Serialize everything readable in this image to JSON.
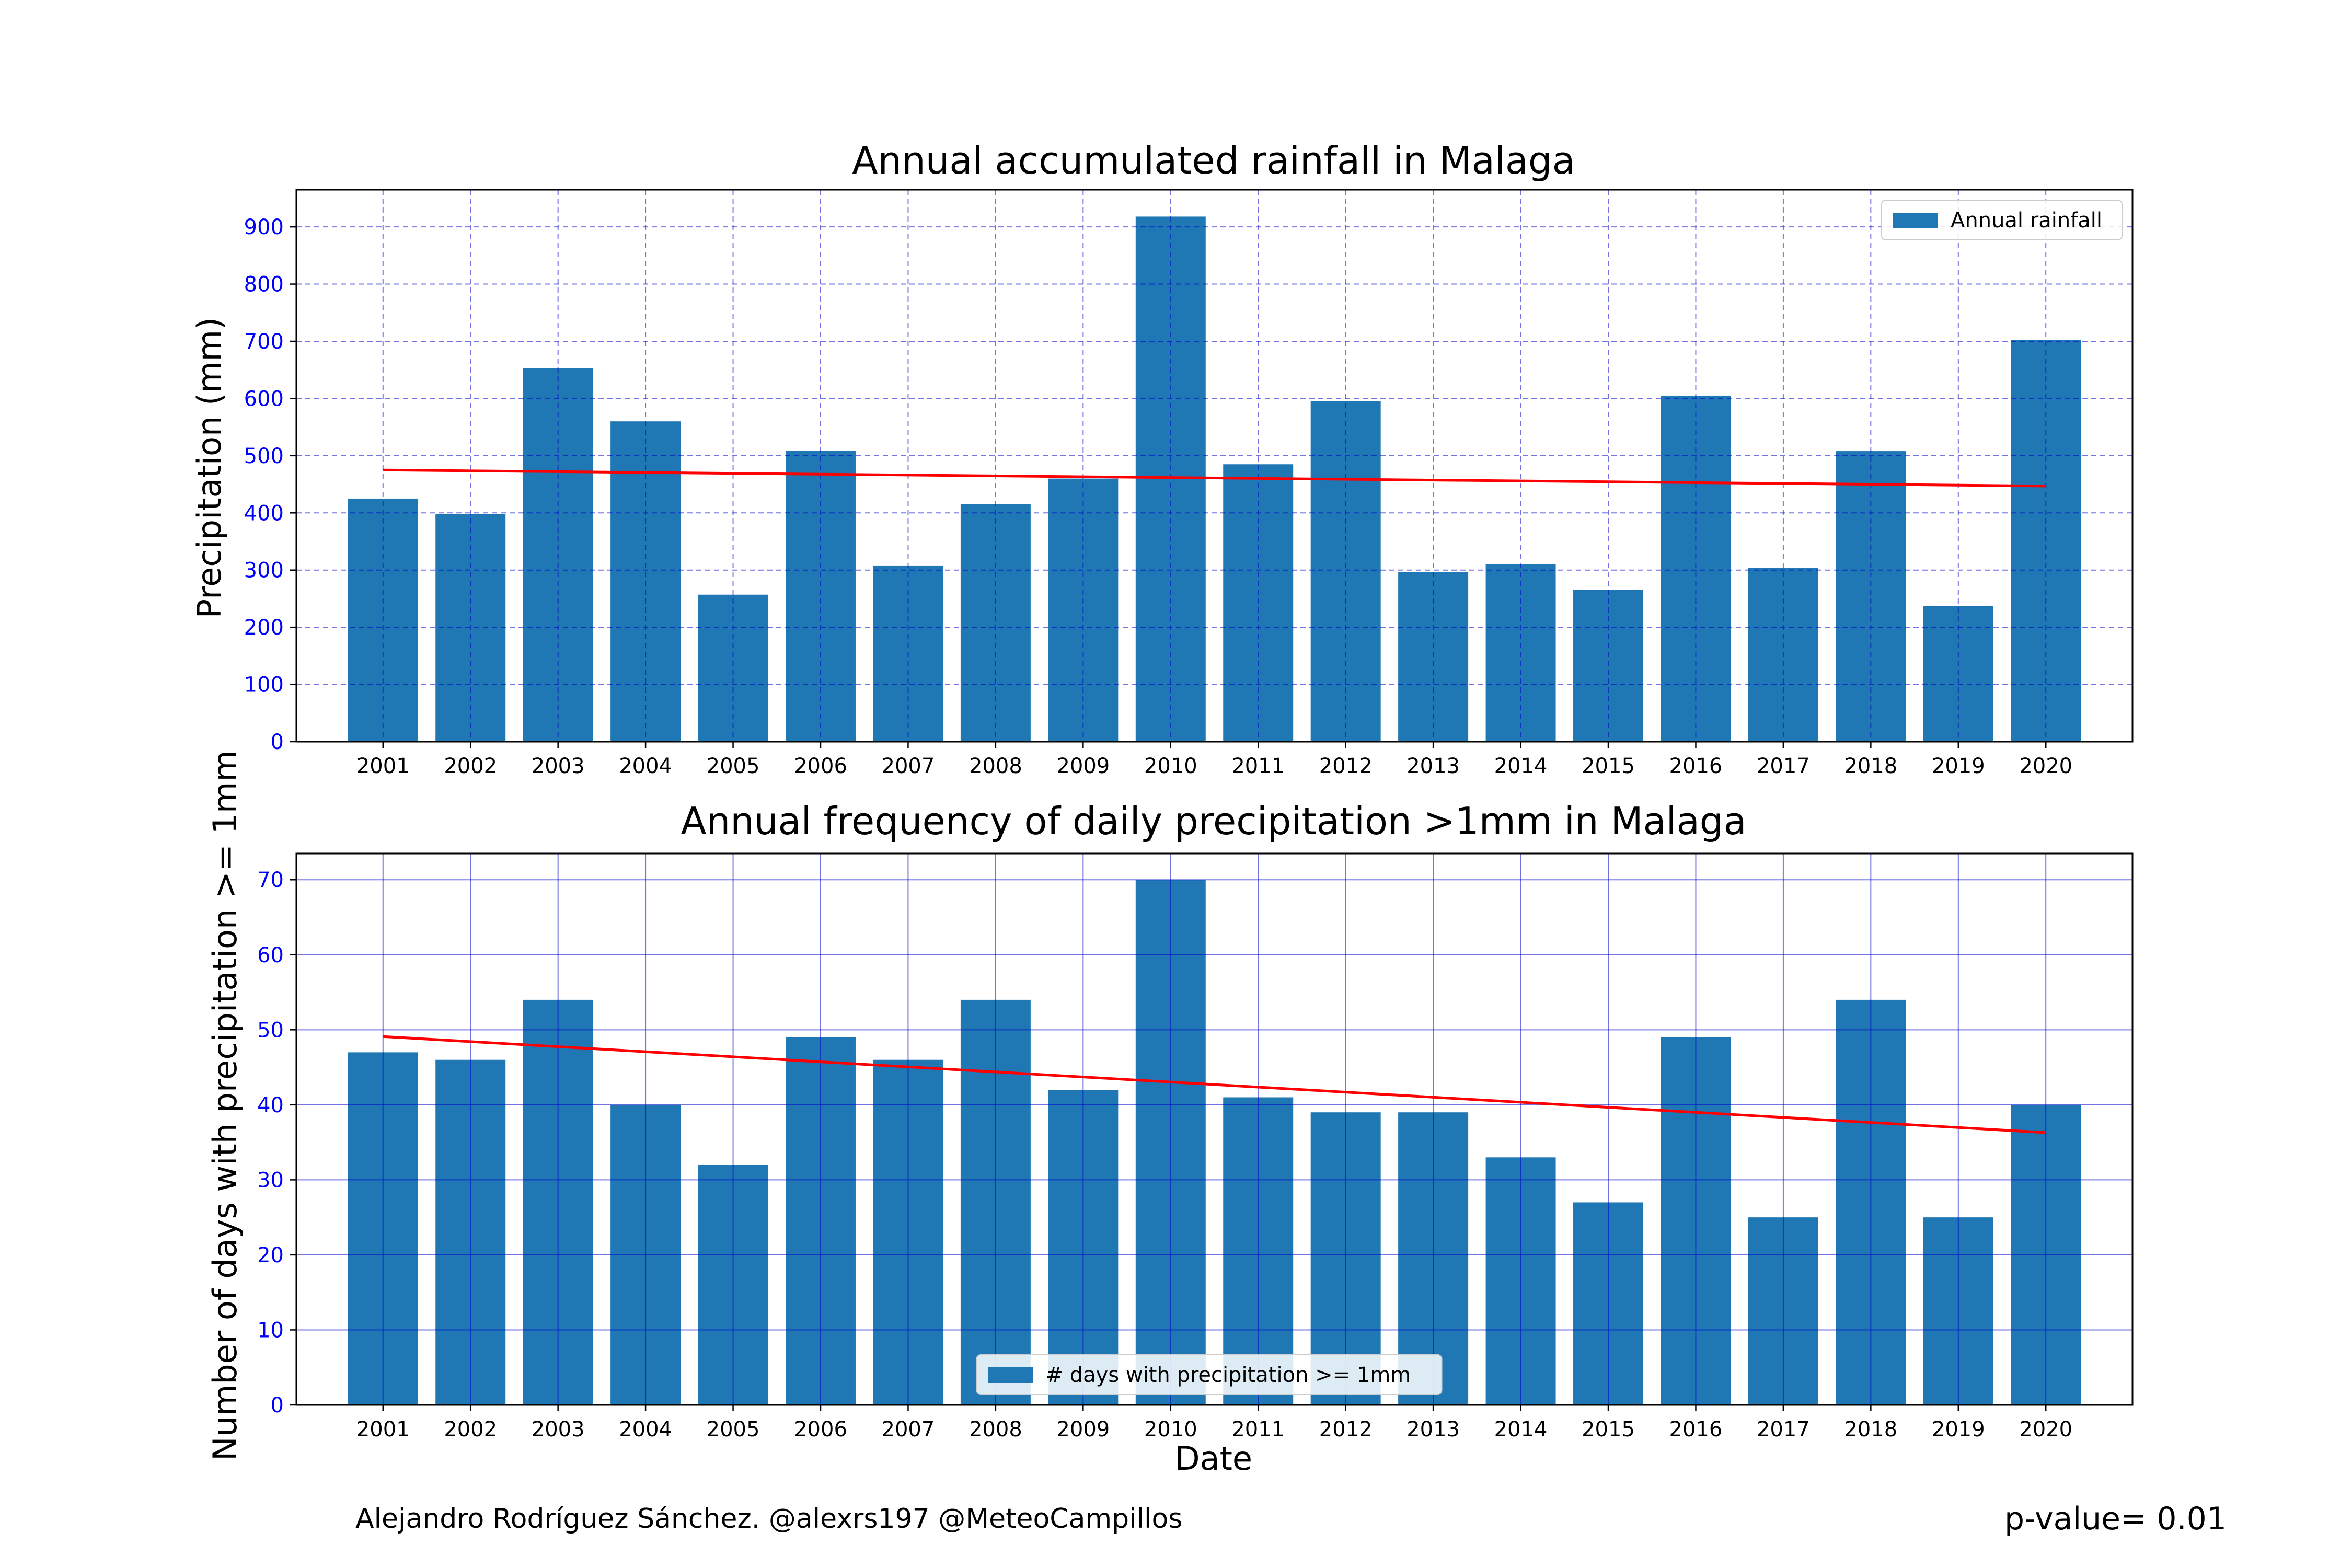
{
  "chart_data": [
    {
      "type": "bar",
      "title": "Annual accumulated rainfall in Malaga",
      "xlabel": "",
      "ylabel": "Precipitation (mm)",
      "ylim": [
        0,
        965
      ],
      "yticks": [
        0,
        100,
        200,
        300,
        400,
        500,
        600,
        700,
        800,
        900
      ],
      "grid": "dashed",
      "legend_position": "top-right",
      "bar_color": "#1f77b4",
      "grid_color": "#0000cc",
      "trend_color": "#ff0000",
      "categories": [
        "2001",
        "2002",
        "2003",
        "2004",
        "2005",
        "2006",
        "2007",
        "2008",
        "2009",
        "2010",
        "2011",
        "2012",
        "2013",
        "2014",
        "2015",
        "2016",
        "2017",
        "2018",
        "2019",
        "2020"
      ],
      "series": [
        {
          "name": "Annual rainfall",
          "values": [
            425,
            398,
            653,
            560,
            257,
            509,
            308,
            415,
            460,
            918,
            485,
            595,
            297,
            310,
            265,
            605,
            304,
            508,
            237,
            702
          ]
        }
      ],
      "trend": {
        "start": 475,
        "end": 447
      }
    },
    {
      "type": "bar",
      "title": "Annual frequency of daily precipitation >1mm in Malaga",
      "xlabel": "Date",
      "ylabel": "Number of days with precipitation >= 1mm",
      "ylim": [
        0,
        73.5
      ],
      "yticks": [
        0,
        10,
        20,
        30,
        40,
        50,
        60,
        70
      ],
      "grid": "solid",
      "legend_position": "bottom-center",
      "bar_color": "#1f77b4",
      "grid_color": "#0000cc",
      "trend_color": "#ff0000",
      "categories": [
        "2001",
        "2002",
        "2003",
        "2004",
        "2005",
        "2006",
        "2007",
        "2008",
        "2009",
        "2010",
        "2011",
        "2012",
        "2013",
        "2014",
        "2015",
        "2016",
        "2017",
        "2018",
        "2019",
        "2020"
      ],
      "series": [
        {
          "name": "# days with precipitation >= 1mm",
          "values": [
            47,
            46,
            54,
            40,
            32,
            49,
            46,
            54,
            42,
            70,
            41,
            39,
            39,
            33,
            27,
            49,
            25,
            54,
            25,
            40
          ]
        }
      ],
      "trend": {
        "start": 49.1,
        "end": 36.3
      }
    }
  ],
  "footer": {
    "credit": "Alejandro Rodríguez Sánchez. @alexrs197 @MeteoCampillos",
    "pvalue": "p-value= 0.01"
  }
}
